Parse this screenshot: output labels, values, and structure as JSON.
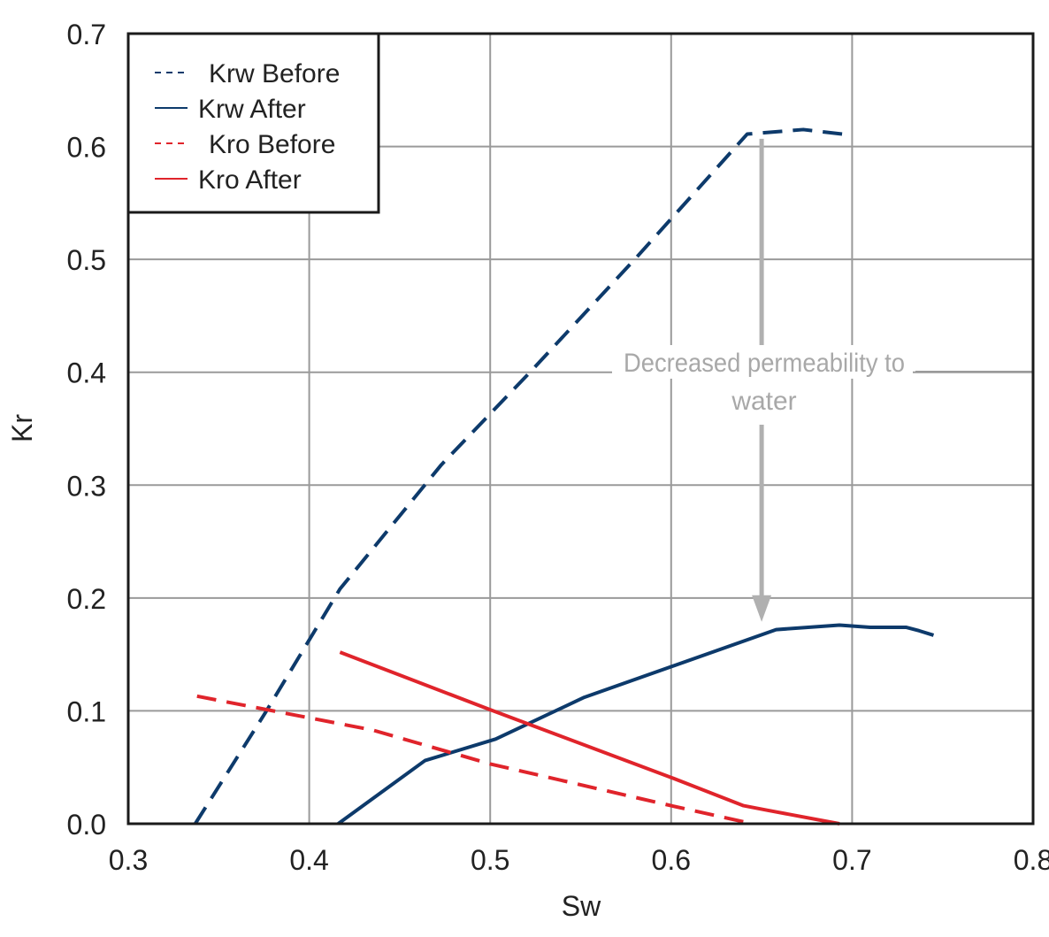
{
  "chart_data": {
    "type": "line",
    "xlabel": "Sw",
    "ylabel": "Kr",
    "xlim": [
      0.3,
      0.8
    ],
    "ylim": [
      0.0,
      0.7
    ],
    "xticks": [
      "0.3",
      "0.4",
      "0.5",
      "0.6",
      "0.7",
      "0.8"
    ],
    "yticks": [
      "0.0",
      "0.1",
      "0.2",
      "0.3",
      "0.4",
      "0.5",
      "0.6",
      "0.7"
    ],
    "grid": true,
    "legend_position": "top-left",
    "series": [
      {
        "name": "Krw Before",
        "color": "#0d3a6b",
        "dashed": true,
        "x": [
          0.337,
          0.376,
          0.417,
          0.473,
          0.522,
          0.581,
          0.642,
          0.673,
          0.7
        ],
        "y": [
          0.0,
          0.099,
          0.208,
          0.318,
          0.4,
          0.502,
          0.611,
          0.615,
          0.61
        ]
      },
      {
        "name": "Krw After",
        "color": "#0d3a6b",
        "dashed": false,
        "x": [
          0.416,
          0.464,
          0.503,
          0.552,
          0.658,
          0.693,
          0.71,
          0.73,
          0.737,
          0.745
        ],
        "y": [
          0.0,
          0.056,
          0.075,
          0.112,
          0.172,
          0.176,
          0.174,
          0.174,
          0.171,
          0.167
        ]
      },
      {
        "name": "Kro Before",
        "color": "#e0242b",
        "dashed": true,
        "x": [
          0.338,
          0.435,
          0.5,
          0.6,
          0.645
        ],
        "y": [
          0.113,
          0.083,
          0.053,
          0.016,
          0.0
        ]
      },
      {
        "name": "Kro After",
        "color": "#e0242b",
        "dashed": false,
        "x": [
          0.417,
          0.5,
          0.6,
          0.64,
          0.653,
          0.693
        ],
        "y": [
          0.152,
          0.101,
          0.041,
          0.016,
          0.012,
          0.0
        ]
      }
    ],
    "annotation": {
      "line1": "Decreased permeability to",
      "line2": "water",
      "x": 0.65,
      "from_y": 0.61,
      "to_y": 0.175,
      "color": "#b0b0b0"
    }
  }
}
